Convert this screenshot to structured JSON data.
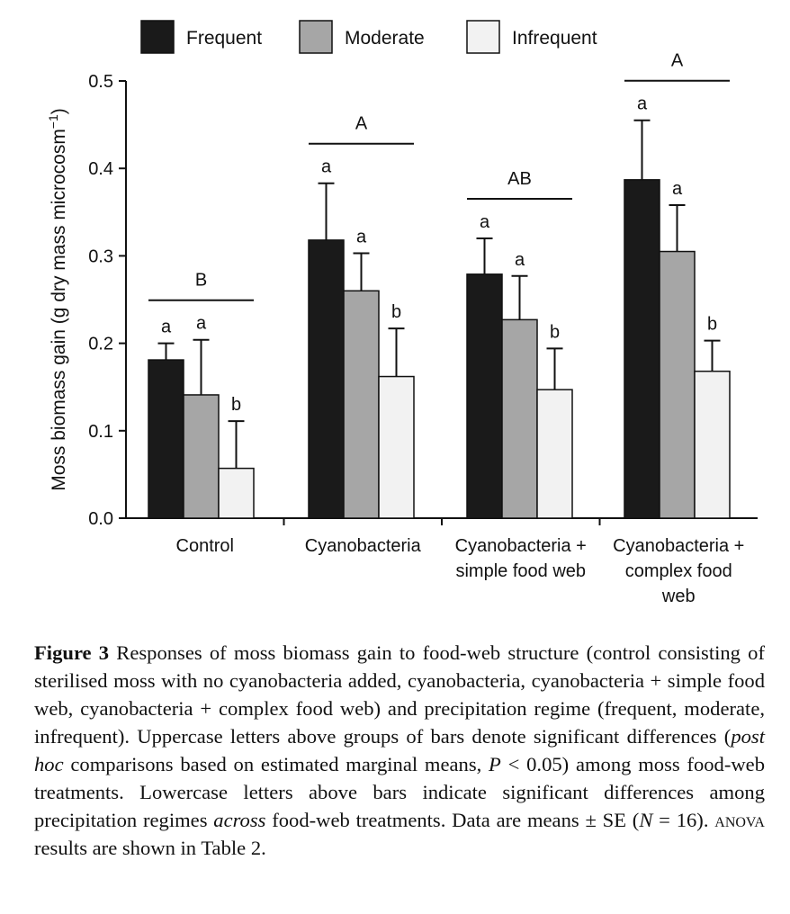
{
  "chart_data": {
    "type": "bar",
    "ylabel": "Moss biomass gain  (g dry mass microcosm",
    "ylabel_sup": "−1",
    "ylabel_close": ")",
    "ylim": [
      0,
      0.5
    ],
    "yticks": [
      "0.0",
      "0.1",
      "0.2",
      "0.3",
      "0.4",
      "0.5"
    ],
    "categories": [
      [
        "Control"
      ],
      [
        "Cyanobacteria"
      ],
      [
        "Cyanobacteria +",
        "simple food web"
      ],
      [
        "Cyanobacteria +",
        "complex food",
        "web"
      ]
    ],
    "legend_position": "top",
    "series": [
      {
        "name": "Frequent",
        "color": "#1a1a1a",
        "values": [
          0.181,
          0.318,
          0.279,
          0.387
        ],
        "errors": [
          0.019,
          0.065,
          0.041,
          0.068
        ]
      },
      {
        "name": "Moderate",
        "color": "#a6a6a6",
        "values": [
          0.141,
          0.26,
          0.227,
          0.305
        ],
        "errors": [
          0.063,
          0.043,
          0.05,
          0.053
        ]
      },
      {
        "name": "Infrequent",
        "color": "#f2f2f2",
        "values": [
          0.057,
          0.162,
          0.147,
          0.168
        ],
        "errors": [
          0.054,
          0.055,
          0.047,
          0.035
        ]
      }
    ],
    "bar_letters": [
      [
        "a",
        "a",
        "b"
      ],
      [
        "a",
        "a",
        "b"
      ],
      [
        "a",
        "a",
        "b"
      ],
      [
        "a",
        "a",
        "b"
      ]
    ],
    "group_letters": [
      "B",
      "A",
      "AB",
      "A"
    ]
  },
  "caption": {
    "label": "Figure 3",
    "p1": " Responses of moss biomass gain to food-web structure (control consisting of sterilised moss with no cyanobacteria added, cyanobacteria, cyanobacteria + simple food web, cyanobacteria + complex food web) and precipitation regime (frequent, moderate, infrequent). Uppercase letters above groups of bars denote significant differences (",
    "ital1": "post hoc",
    "p2": " comparisons based on estimated marginal means, ",
    "ital2": "P",
    "p3": " < 0.05) among moss food-web treatments. Lowercase letters above bars indicate significant differences among precipitation regimes ",
    "ital3": "across",
    "p4": " food-web treatments. Data are means ± SE (",
    "ital4": "N",
    "p5": " = 16). ",
    "smallcaps": "anova",
    "p6": " results are shown in Table 2."
  }
}
